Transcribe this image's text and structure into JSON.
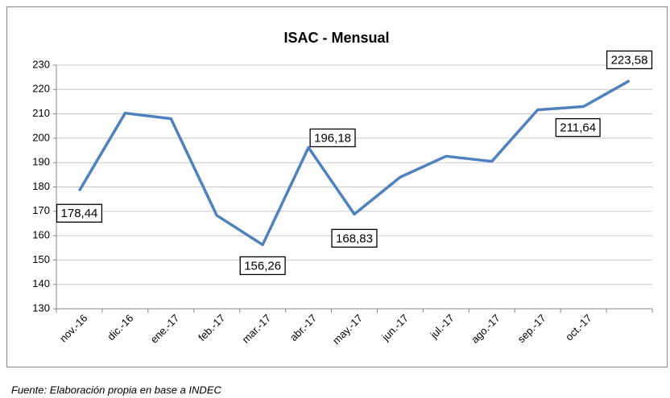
{
  "chart_data": {
    "type": "line",
    "title": "ISAC - Mensual",
    "categories": [
      "nov.-16",
      "dic.-16",
      "ene.-17",
      "feb.-17",
      "mar.-17",
      "abr.-17",
      "may.-17",
      "jun.-17",
      "jul.-17",
      "ago.-17",
      "sep.-17",
      "oct.-17",
      null
    ],
    "series": [
      {
        "name": "ISAC",
        "color": "#4f81bd",
        "values": [
          178.44,
          210.3,
          208.0,
          168.3,
          156.26,
          196.18,
          168.83,
          184.0,
          192.6,
          190.5,
          211.64,
          213.0,
          223.58
        ],
        "value_labels": [
          "178,44",
          null,
          null,
          null,
          "156,26",
          "196,18",
          "168,83",
          null,
          null,
          null,
          "211,64",
          null,
          "223,58"
        ]
      }
    ],
    "ylim": [
      130,
      230
    ],
    "yticks": [
      130,
      140,
      150,
      160,
      170,
      180,
      190,
      200,
      210,
      220,
      230
    ],
    "grid": true,
    "source": "Fuente: Elaboración propia en base a INDEC"
  }
}
